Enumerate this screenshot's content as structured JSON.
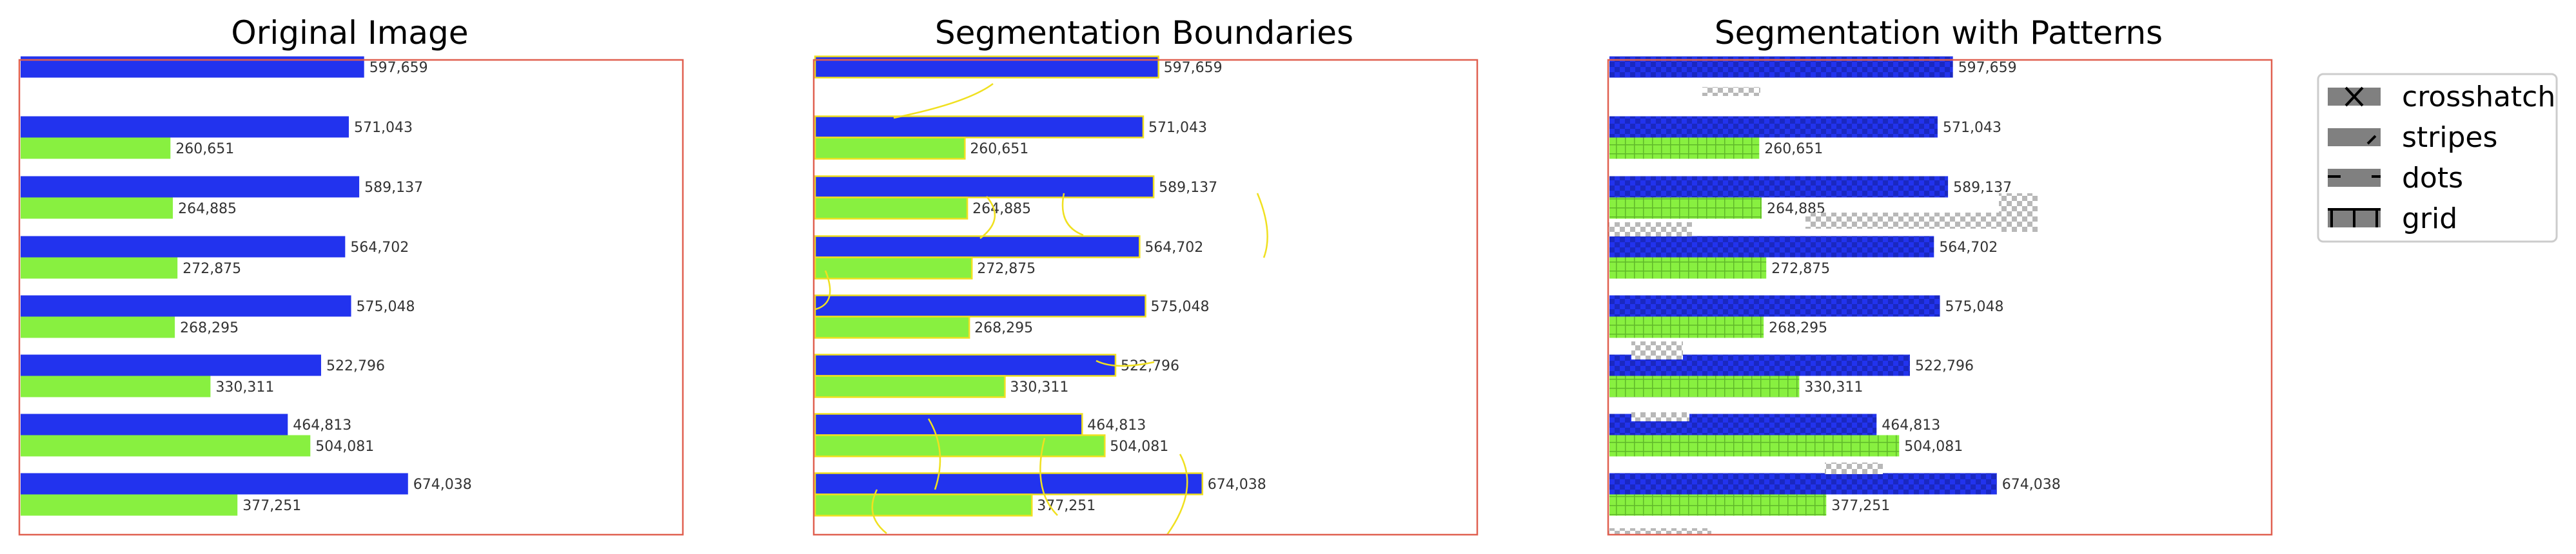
{
  "panels": [
    {
      "title": "Original Image",
      "style": "plain"
    },
    {
      "title": "Segmentation Boundaries",
      "style": "boundaries"
    },
    {
      "title": "Segmentation with Patterns",
      "style": "patterns"
    }
  ],
  "legend": {
    "items": [
      {
        "label": "crosshatch",
        "glyph": "crosshatch-icon"
      },
      {
        "label": "stripes",
        "glyph": "stripes-icon"
      },
      {
        "label": "dots",
        "glyph": "dots-icon"
      },
      {
        "label": "grid",
        "glyph": "grid-icon"
      }
    ]
  },
  "colors": {
    "series_blue": "#2233ee",
    "series_green": "#88f040",
    "frame": "#e06050",
    "boundary": "#f0e020"
  },
  "chart_data": [
    {
      "type": "bar",
      "orientation": "horizontal",
      "title": "Original Image",
      "xlim": [
        0,
        1150000
      ],
      "series": [
        {
          "values": [
            597659,
            571043,
            589137,
            564702,
            575048,
            522796,
            464813,
            674038
          ]
        },
        {
          "values": [
            null,
            260651,
            264885,
            272875,
            268295,
            330311,
            504081,
            377251
          ]
        }
      ],
      "value_labels": true
    },
    {
      "type": "bar",
      "orientation": "horizontal",
      "title": "Segmentation Boundaries",
      "xlim": [
        0,
        1150000
      ],
      "series": [
        {
          "values": [
            597659,
            571043,
            589137,
            564702,
            575048,
            522796,
            464813,
            674038
          ]
        },
        {
          "values": [
            null,
            260651,
            264885,
            272875,
            268295,
            330311,
            504081,
            377251
          ]
        }
      ],
      "value_labels": true
    },
    {
      "type": "bar",
      "orientation": "horizontal",
      "title": "Segmentation with Patterns",
      "xlim": [
        0,
        1150000
      ],
      "series": [
        {
          "values": [
            597659,
            571043,
            589137,
            564702,
            575048,
            522796,
            464813,
            674038
          ]
        },
        {
          "values": [
            null,
            260651,
            264885,
            272875,
            268295,
            330311,
            504081,
            377251
          ]
        }
      ],
      "value_labels": true
    }
  ]
}
